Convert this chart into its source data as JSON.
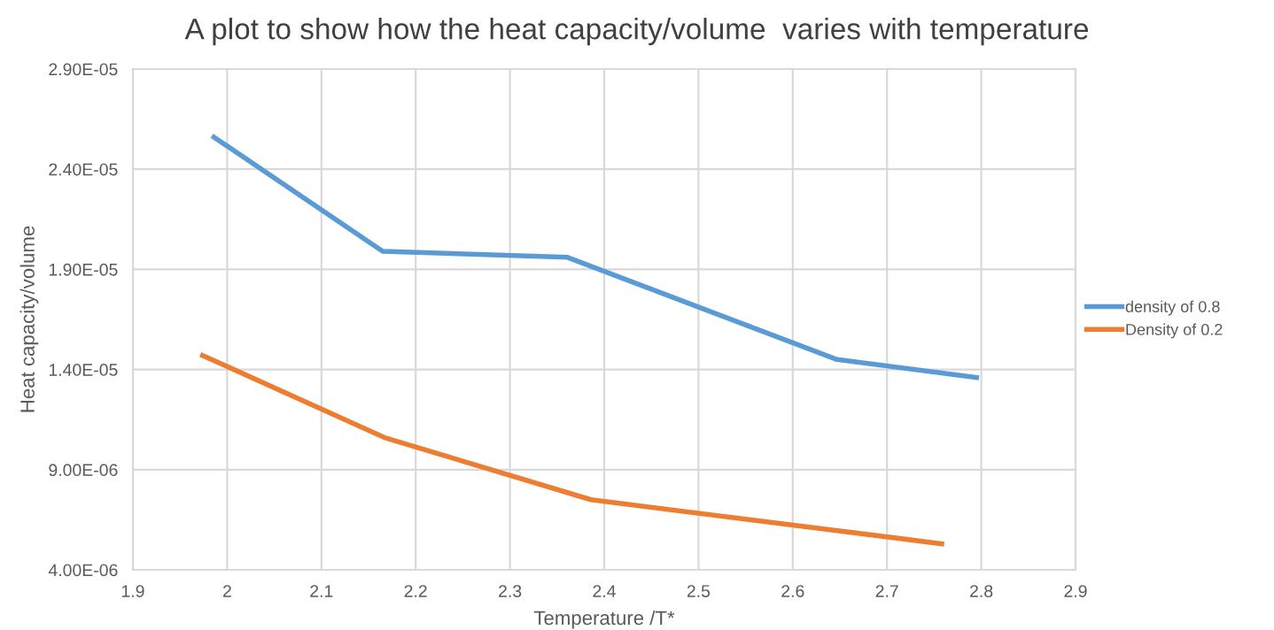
{
  "chart_data": {
    "type": "line",
    "title": "A plot to show how the heat capacity/volume  varies with temperature",
    "xlabel": "Temperature /T*",
    "ylabel": "Heat capacity/volume",
    "series": [
      {
        "name": "density of 0.8",
        "color": "#5b9bd5",
        "x": [
          1.986,
          2.165,
          2.361,
          2.647,
          2.795
        ],
        "values": [
          2.56e-05,
          1.99e-05,
          1.96e-05,
          1.45e-05,
          1.36e-05
        ]
      },
      {
        "name": "Density of 0.2",
        "color": "#ed7d31",
        "x": [
          1.974,
          2.167,
          2.386,
          2.758
        ],
        "values": [
          1.47e-05,
          1.06e-05,
          7.5e-06,
          5.3e-06
        ]
      }
    ],
    "xlim": [
      1.9,
      2.9
    ],
    "xticks": [
      1.9,
      2,
      2.1,
      2.2,
      2.3,
      2.4,
      2.5,
      2.6,
      2.7,
      2.8,
      2.9
    ],
    "ylim": [
      4e-06,
      2.9e-05
    ],
    "yticks": [
      {
        "value": 4e-06,
        "label": "4.00E-06"
      },
      {
        "value": 9e-06,
        "label": "9.00E-06"
      },
      {
        "value": 1.4e-05,
        "label": "1.40E-05"
      },
      {
        "value": 1.9e-05,
        "label": "1.90E-05"
      },
      {
        "value": 2.4e-05,
        "label": "2.40E-05"
      },
      {
        "value": 2.9e-05,
        "label": "2.90E-05"
      }
    ],
    "grid": true,
    "legend": "right",
    "marker": "none",
    "line_style": "solid"
  }
}
